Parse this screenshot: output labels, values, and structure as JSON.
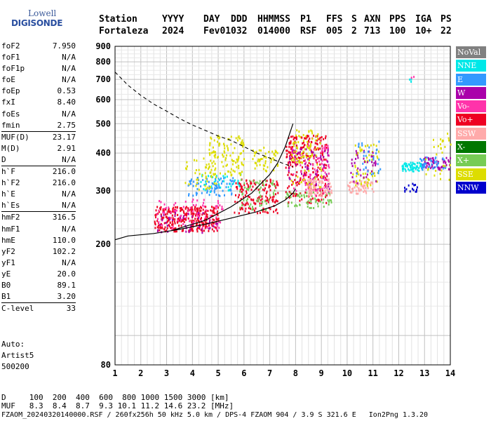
{
  "logo": {
    "line1": "Lowell",
    "line2": "DIGISONDE"
  },
  "header": {
    "labels": [
      "Station",
      "YYYY",
      "DAY",
      "DDD",
      "HHMMSS",
      "P1",
      "FFS",
      "S",
      "AXN",
      "PPS",
      "IGA",
      "PS"
    ],
    "values": [
      "Fortaleza",
      "2024",
      "Fev01",
      "032",
      "014000",
      "RSF",
      "005",
      "2",
      "713",
      "100",
      "10+",
      "22"
    ]
  },
  "params": [
    [
      {
        "k": "foF2",
        "v": "7.950"
      },
      {
        "k": "foF1",
        "v": "N/A"
      },
      {
        "k": "foF1p",
        "v": "N/A"
      },
      {
        "k": "foE",
        "v": "N/A"
      },
      {
        "k": "foEp",
        "v": "0.53"
      },
      {
        "k": "fxI",
        "v": "8.40"
      },
      {
        "k": "foEs",
        "v": "N/A"
      },
      {
        "k": "fmin",
        "v": "2.75"
      }
    ],
    [
      {
        "k": "MUF(D)",
        "v": "23.17"
      },
      {
        "k": "M(D)",
        "v": "2.91"
      },
      {
        "k": "D",
        "v": "N/A"
      }
    ],
    [
      {
        "k": "h`F",
        "v": "216.0"
      },
      {
        "k": "h`F2",
        "v": "216.0"
      },
      {
        "k": "h`E",
        "v": "N/A"
      },
      {
        "k": "h`Es",
        "v": "N/A"
      }
    ],
    [
      {
        "k": "hmF2",
        "v": "316.5"
      },
      {
        "k": "hmF1",
        "v": "N/A"
      },
      {
        "k": "hmE",
        "v": "110.0"
      },
      {
        "k": "yF2",
        "v": "102.2"
      },
      {
        "k": "yF1",
        "v": "N/A"
      },
      {
        "k": "yE",
        "v": "20.0"
      },
      {
        "k": "B0",
        "v": "89.1"
      },
      {
        "k": "B1",
        "v": "3.20"
      }
    ],
    [
      {
        "k": "C-level",
        "v": "33"
      }
    ]
  ],
  "auto": {
    "label": "Auto:",
    "name": "Artist5",
    "code": "500200"
  },
  "legend": [
    {
      "label": "NoVal",
      "color": "#808080"
    },
    {
      "label": "NNE",
      "color": "#00e8e8"
    },
    {
      "label": "E",
      "color": "#3399ff"
    },
    {
      "label": "W",
      "color": "#aa00aa"
    },
    {
      "label": "Vo-",
      "color": "#ff33aa"
    },
    {
      "label": "Vo+",
      "color": "#ee0022"
    },
    {
      "label": "SSW",
      "color": "#ffaaaa"
    },
    {
      "label": "X-",
      "color": "#007700"
    },
    {
      "label": "X+",
      "color": "#77cc55"
    },
    {
      "label": "SSE",
      "color": "#dddd00"
    },
    {
      "label": "NNW",
      "color": "#0000cc"
    }
  ],
  "footer": {
    "d_line": "D     100  200  400  600  800 1000 1500 3000 [km]",
    "muf_line": "MUF   8.3  8.4  8.7  9.3 10.1 11.2 14.6 23.2 [MHz]",
    "file_line": "FZAOM_20240320140000.RSF / 260fx256h 50 kHz 5.0 km / DPS-4 FZAOM 904 / 3.9 S 321.6 E   Ion2Png 1.3.20"
  },
  "chart_data": {
    "type": "scatter",
    "title": "",
    "xlabel": "",
    "ylabel": "",
    "xlim": [
      1,
      14
    ],
    "ylim": [
      80,
      900
    ],
    "y_scale": "log",
    "grid": true,
    "x_ticks": [
      "1",
      "2",
      "3",
      "4",
      "5",
      "6",
      "7",
      "8",
      "9",
      "10",
      "11",
      "12",
      "13",
      "14"
    ],
    "y_ticks": [
      {
        "v": 80,
        "label": "80"
      },
      {
        "v": 200,
        "label": "200"
      },
      {
        "v": 300,
        "label": "300"
      },
      {
        "v": 400,
        "label": "400"
      },
      {
        "v": 500,
        "label": "500"
      },
      {
        "v": 600,
        "label": "600"
      },
      {
        "v": 700,
        "label": "700"
      },
      {
        "v": 800,
        "label": "800"
      },
      {
        "v": 900,
        "label": "900"
      }
    ],
    "y_grid": [
      100,
      200,
      300,
      400,
      500,
      600,
      700,
      800,
      900
    ],
    "legend_position": "right-outside",
    "solid_curve": [
      [
        1.0,
        207
      ],
      [
        1.5,
        213
      ],
      [
        2.5,
        217
      ],
      [
        3.5,
        224
      ],
      [
        4.5,
        233
      ],
      [
        5.5,
        244
      ],
      [
        6.5,
        256
      ],
      [
        7.2,
        268
      ],
      [
        7.6,
        280
      ],
      [
        7.9,
        295
      ],
      [
        8.0,
        305
      ]
    ],
    "profile_curve": [
      [
        3.2,
        222
      ],
      [
        4.5,
        240
      ],
      [
        5.5,
        266
      ],
      [
        6.3,
        295
      ],
      [
        7.0,
        340
      ],
      [
        7.3,
        370
      ],
      [
        7.6,
        420
      ],
      [
        7.9,
        500
      ]
    ],
    "dashed_curve": [
      [
        1.0,
        740
      ],
      [
        1.5,
        670
      ],
      [
        2.0,
        620
      ],
      [
        2.5,
        580
      ],
      [
        3.0,
        550
      ],
      [
        3.5,
        520
      ],
      [
        4.0,
        495
      ],
      [
        4.5,
        475
      ],
      [
        5.0,
        455
      ],
      [
        5.5,
        440
      ],
      [
        6.0,
        420
      ],
      [
        6.5,
        400
      ],
      [
        7.0,
        385
      ],
      [
        7.5,
        370
      ],
      [
        7.9,
        360
      ]
    ],
    "echo_clusters": [
      {
        "x": [
          2.5,
          5.0
        ],
        "y": [
          222,
          268
        ],
        "color": "#ee0022",
        "n": 300
      },
      {
        "x": [
          2.6,
          5.2
        ],
        "y": [
          225,
          285
        ],
        "color": "#ff33aa",
        "n": 80
      },
      {
        "x": [
          2.6,
          5.0
        ],
        "y": [
          220,
          260
        ],
        "color": "#aa00aa",
        "n": 40
      },
      {
        "x": [
          3.8,
          5.6
        ],
        "y": [
          290,
          335
        ],
        "color": "#3399ff",
        "n": 80
      },
      {
        "x": [
          4.3,
          5.9
        ],
        "y": [
          300,
          345
        ],
        "color": "#00e8e8",
        "n": 40
      },
      {
        "x": [
          4.6,
          6.0
        ],
        "y": [
          340,
          460
        ],
        "color": "#dddd00",
        "n": 120
      },
      {
        "x": [
          3.6,
          4.9
        ],
        "y": [
          305,
          390
        ],
        "color": "#dddd00",
        "n": 40
      },
      {
        "x": [
          5.6,
          7.3
        ],
        "y": [
          255,
          330
        ],
        "color": "#ee0022",
        "n": 150
      },
      {
        "x": [
          5.8,
          7.2
        ],
        "y": [
          260,
          330
        ],
        "color": "#77cc55",
        "n": 60
      },
      {
        "x": [
          6.3,
          7.3
        ],
        "y": [
          350,
          420
        ],
        "color": "#dddd00",
        "n": 50
      },
      {
        "x": [
          7.6,
          9.2
        ],
        "y": [
          275,
          460
        ],
        "color": "#ee0022",
        "n": 260
      },
      {
        "x": [
          7.8,
          9.3
        ],
        "y": [
          290,
          430
        ],
        "color": "#ff33aa",
        "n": 90
      },
      {
        "x": [
          7.7,
          9.3
        ],
        "y": [
          300,
          420
        ],
        "color": "#aa00aa",
        "n": 70
      },
      {
        "x": [
          7.8,
          9.0
        ],
        "y": [
          310,
          480
        ],
        "color": "#dddd00",
        "n": 90
      },
      {
        "x": [
          7.6,
          9.4
        ],
        "y": [
          265,
          300
        ],
        "color": "#77cc55",
        "n": 60
      },
      {
        "x": [
          8.4,
          9.4
        ],
        "y": [
          290,
          330
        ],
        "color": "#ffaaaa",
        "n": 70
      },
      {
        "x": [
          10.0,
          11.0
        ],
        "y": [
          295,
          325
        ],
        "color": "#ffaaaa",
        "n": 60
      },
      {
        "x": [
          10.2,
          11.2
        ],
        "y": [
          310,
          430
        ],
        "color": "#dddd00",
        "n": 60
      },
      {
        "x": [
          10.1,
          11.1
        ],
        "y": [
          320,
          410
        ],
        "color": "#aa00aa",
        "n": 40
      },
      {
        "x": [
          10.3,
          11.3
        ],
        "y": [
          340,
          440
        ],
        "color": "#3399ff",
        "n": 30
      },
      {
        "x": [
          12.1,
          12.9
        ],
        "y": [
          350,
          375
        ],
        "color": "#00e8e8",
        "n": 60
      },
      {
        "x": [
          12.9,
          14.0
        ],
        "y": [
          355,
          390
        ],
        "color": "#aa00aa",
        "n": 60
      },
      {
        "x": [
          12.8,
          13.8
        ],
        "y": [
          355,
          390
        ],
        "color": "#3399ff",
        "n": 40
      },
      {
        "x": [
          12.2,
          12.7
        ],
        "y": [
          300,
          320
        ],
        "color": "#0000cc",
        "n": 15
      },
      {
        "x": [
          13.0,
          14.0
        ],
        "y": [
          320,
          475
        ],
        "color": "#dddd00",
        "n": 30
      },
      {
        "x": [
          12.4,
          12.6
        ],
        "y": [
          685,
          715
        ],
        "color": "#00e8e8",
        "n": 3
      },
      {
        "x": [
          12.4,
          12.6
        ],
        "y": [
          700,
          720
        ],
        "color": "#ff33aa",
        "n": 2
      }
    ]
  }
}
